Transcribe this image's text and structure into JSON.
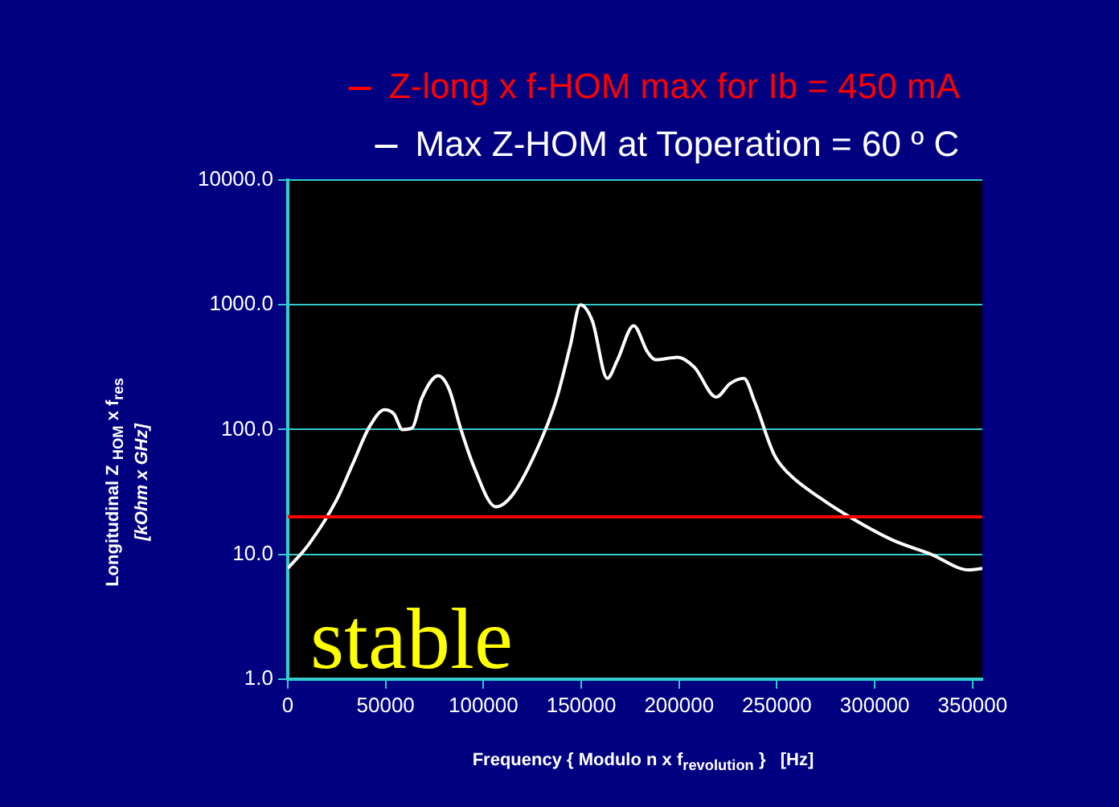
{
  "chart_data": {
    "type": "line",
    "xlabel": "Frequency { Modulo n x f$_{revolution}$ }   [Hz]",
    "ylabel": "Longitudinal Z $_{HOM}$ x f$_{res}$\n[kOhm x GHz]",
    "x": [
      0,
      10700,
      24800,
      33200,
      41700,
      49500,
      54300,
      58600,
      63600,
      68400,
      76900,
      82500,
      88100,
      95200,
      106400,
      114900,
      129000,
      137400,
      144400,
      149500,
      155700,
      163300,
      168300,
      176800,
      183800,
      188000,
      199300,
      207800,
      219000,
      226100,
      233100,
      238700,
      248600,
      255600,
      272500,
      289400,
      309100,
      328800,
      348000,
      355000
    ],
    "series": [
      {
        "name": "Z-long x f-HOM max for Ib = 450 mA",
        "color": "#ff0000",
        "x": [
          0,
          355000
        ],
        "values": [
          20,
          20
        ]
      },
      {
        "name": "Max Z-HOM at Toperation = 60 º C",
        "color": "#ffffff",
        "values": [
          7.7,
          12,
          27,
          53,
          105,
          144,
          133,
          100,
          103,
          177,
          270,
          210,
          105,
          50,
          24,
          30,
          79,
          177,
          470,
          1000,
          740,
          257,
          355,
          680,
          420,
          363,
          380,
          316,
          182,
          234,
          257,
          166,
          63,
          45,
          28,
          19,
          13,
          10,
          7.5,
          7.7
        ]
      }
    ],
    "log": "y",
    "xlim": [
      0,
      355000
    ],
    "xticks": [
      0,
      50000,
      100000,
      150000,
      200000,
      250000,
      300000,
      350000
    ],
    "ylim": [
      1,
      10000
    ],
    "yticks": [
      {
        "value": 1,
        "label": "1.0"
      },
      {
        "value": 10,
        "label": "10.0"
      },
      {
        "value": 100,
        "label": "100.0"
      },
      {
        "value": 1000,
        "label": "1000.0"
      },
      {
        "value": 10000,
        "label": "10000.0"
      }
    ],
    "grid": "y",
    "legend": "top",
    "marker": "none",
    "line_style": "solid",
    "annotations": [
      "stable"
    ]
  }
}
